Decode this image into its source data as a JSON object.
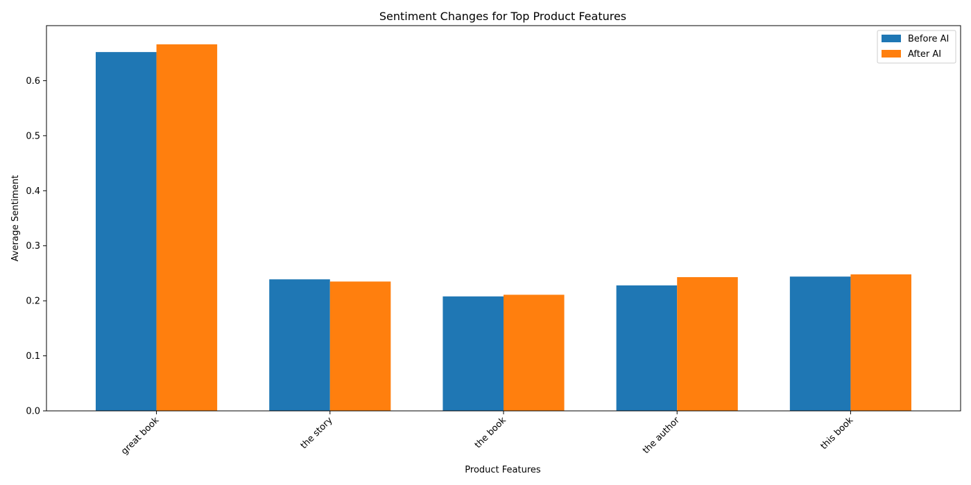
{
  "chart_data": {
    "type": "bar",
    "title": "Sentiment Changes for Top Product Features",
    "xlabel": "Product Features",
    "ylabel": "Average Sentiment",
    "categories": [
      "great book",
      "the story",
      "the book",
      "the author",
      "this book"
    ],
    "series": [
      {
        "name": "Before AI",
        "color": "#1f77b4",
        "values": [
          0.652,
          0.239,
          0.208,
          0.228,
          0.244
        ]
      },
      {
        "name": "After AI",
        "color": "#ff7f0e",
        "values": [
          0.666,
          0.235,
          0.211,
          0.243,
          0.248
        ]
      }
    ],
    "ylim": [
      0,
      0.7
    ],
    "yticks": [
      0.0,
      0.1,
      0.2,
      0.3,
      0.4,
      0.5,
      0.6
    ],
    "ytick_labels": [
      "0.0",
      "0.1",
      "0.2",
      "0.3",
      "0.4",
      "0.5",
      "0.6"
    ],
    "grid": false,
    "legend_position": "top-right",
    "xtick_rotation": "45 degrees"
  }
}
